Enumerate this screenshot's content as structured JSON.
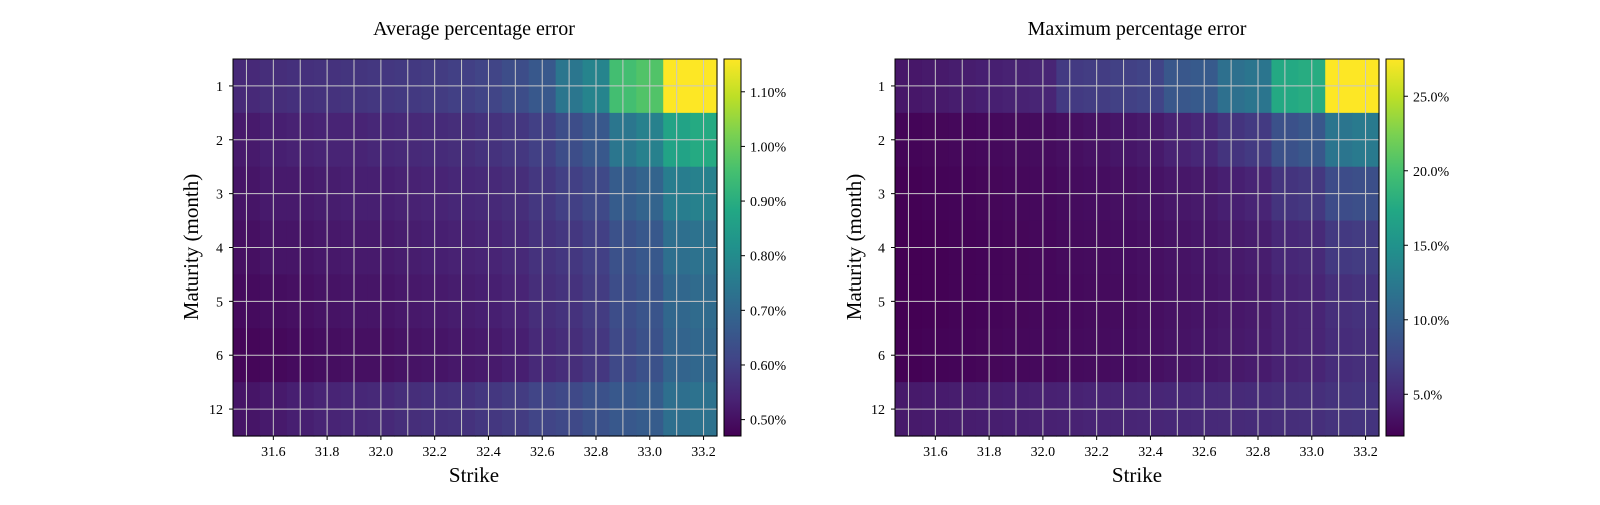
{
  "chart_data": [
    {
      "type": "heatmap",
      "title": "Average percentage error",
      "xlabel": "Strike",
      "ylabel": "Maturity (month)",
      "x": [
        31.5,
        31.6,
        31.7,
        31.8,
        31.9,
        32.0,
        32.1,
        32.2,
        32.3,
        32.4,
        32.5,
        32.6,
        32.7,
        32.8,
        32.9,
        33.0,
        33.1,
        33.2
      ],
      "x_tick_labels": [
        "31.6",
        "31.8",
        "32.0",
        "32.2",
        "32.4",
        "32.6",
        "32.8",
        "33.0",
        "33.2"
      ],
      "x_tick_values": [
        31.6,
        31.8,
        32.0,
        32.2,
        32.4,
        32.6,
        32.8,
        33.0,
        33.2
      ],
      "y_labels": [
        "1",
        "2",
        "3",
        "4",
        "5",
        "6",
        "12"
      ],
      "values": [
        [
          0.55,
          0.56,
          0.565,
          0.57,
          0.575,
          0.58,
          0.585,
          0.59,
          0.6,
          0.61,
          0.63,
          0.66,
          0.74,
          0.78,
          0.95,
          0.97,
          1.16,
          1.16
        ],
        [
          0.52,
          0.53,
          0.535,
          0.54,
          0.54,
          0.545,
          0.55,
          0.555,
          0.56,
          0.57,
          0.58,
          0.6,
          0.63,
          0.66,
          0.74,
          0.77,
          0.87,
          0.89
        ],
        [
          0.51,
          0.52,
          0.52,
          0.525,
          0.53,
          0.53,
          0.535,
          0.54,
          0.545,
          0.55,
          0.56,
          0.58,
          0.6,
          0.62,
          0.67,
          0.69,
          0.76,
          0.77
        ],
        [
          0.5,
          0.51,
          0.51,
          0.515,
          0.52,
          0.52,
          0.525,
          0.53,
          0.535,
          0.54,
          0.55,
          0.57,
          0.58,
          0.6,
          0.64,
          0.66,
          0.72,
          0.73
        ],
        [
          0.49,
          0.495,
          0.5,
          0.505,
          0.51,
          0.51,
          0.515,
          0.52,
          0.525,
          0.53,
          0.54,
          0.56,
          0.57,
          0.59,
          0.63,
          0.65,
          0.7,
          0.71
        ],
        [
          0.48,
          0.485,
          0.49,
          0.495,
          0.5,
          0.5,
          0.505,
          0.51,
          0.515,
          0.52,
          0.53,
          0.55,
          0.56,
          0.58,
          0.62,
          0.64,
          0.69,
          0.7
        ],
        [
          0.51,
          0.52,
          0.53,
          0.54,
          0.545,
          0.55,
          0.56,
          0.565,
          0.57,
          0.58,
          0.59,
          0.61,
          0.62,
          0.64,
          0.66,
          0.67,
          0.72,
          0.73
        ]
      ],
      "colorbar": {
        "min": 0.47,
        "max": 1.16,
        "ticks": [
          0.5,
          0.6,
          0.7,
          0.8,
          0.9,
          1.0,
          1.1
        ],
        "tick_labels": [
          "0.50%",
          "0.60%",
          "0.70%",
          "0.80%",
          "0.90%",
          "1.00%",
          "1.10%"
        ]
      },
      "colormap": "viridis",
      "grid": true
    },
    {
      "type": "heatmap",
      "title": "Maximum percentage error",
      "xlabel": "Strike",
      "ylabel": "Maturity (month)",
      "x": [
        31.5,
        31.6,
        31.7,
        31.8,
        31.9,
        32.0,
        32.1,
        32.2,
        32.3,
        32.4,
        32.5,
        32.6,
        32.7,
        32.8,
        32.9,
        33.0,
        33.1,
        33.2
      ],
      "x_tick_labels": [
        "31.6",
        "31.8",
        "32.0",
        "32.2",
        "32.4",
        "32.6",
        "32.8",
        "33.0",
        "33.2"
      ],
      "x_tick_values": [
        31.6,
        31.8,
        32.0,
        32.2,
        32.4,
        32.6,
        32.8,
        33.0,
        33.2
      ],
      "y_labels": [
        "1",
        "2",
        "3",
        "4",
        "5",
        "6",
        "12"
      ],
      "values": [
        [
          3.8,
          4.0,
          4.2,
          4.4,
          4.6,
          4.8,
          6.5,
          6.7,
          7.0,
          7.3,
          9.0,
          9.3,
          11.5,
          12.0,
          17.5,
          17.8,
          27.5,
          27.5
        ],
        [
          2.5,
          2.6,
          2.7,
          2.8,
          2.9,
          3.0,
          3.2,
          3.4,
          3.7,
          4.0,
          4.6,
          5.0,
          6.0,
          6.5,
          8.5,
          9.0,
          12.0,
          12.5
        ],
        [
          2.3,
          2.4,
          2.5,
          2.6,
          2.7,
          2.8,
          3.0,
          3.1,
          3.3,
          3.5,
          3.8,
          4.0,
          4.4,
          4.7,
          6.0,
          6.3,
          8.0,
          8.3
        ],
        [
          2.2,
          2.3,
          2.4,
          2.5,
          2.6,
          2.7,
          2.9,
          3.0,
          3.1,
          3.3,
          3.5,
          3.7,
          4.0,
          4.2,
          5.0,
          5.2,
          6.4,
          6.6
        ],
        [
          2.2,
          2.3,
          2.4,
          2.5,
          2.6,
          2.7,
          2.8,
          2.9,
          3.0,
          3.2,
          3.4,
          3.6,
          3.8,
          4.0,
          4.6,
          4.8,
          5.6,
          5.8
        ],
        [
          2.3,
          2.4,
          2.5,
          2.6,
          2.7,
          2.8,
          2.9,
          3.0,
          3.1,
          3.3,
          3.5,
          3.7,
          3.9,
          4.1,
          4.6,
          4.8,
          5.4,
          5.6
        ],
        [
          4.0,
          4.1,
          4.2,
          4.3,
          4.4,
          4.5,
          4.6,
          4.7,
          4.8,
          4.9,
          5.0,
          5.1,
          5.2,
          5.3,
          5.5,
          5.6,
          5.9,
          6.0
        ]
      ],
      "colorbar": {
        "min": 2.2,
        "max": 27.5,
        "ticks": [
          5.0,
          10.0,
          15.0,
          20.0,
          25.0
        ],
        "tick_labels": [
          "5.0%",
          "10.0%",
          "15.0%",
          "20.0%",
          "25.0%"
        ]
      },
      "colormap": "viridis",
      "grid": true
    }
  ]
}
